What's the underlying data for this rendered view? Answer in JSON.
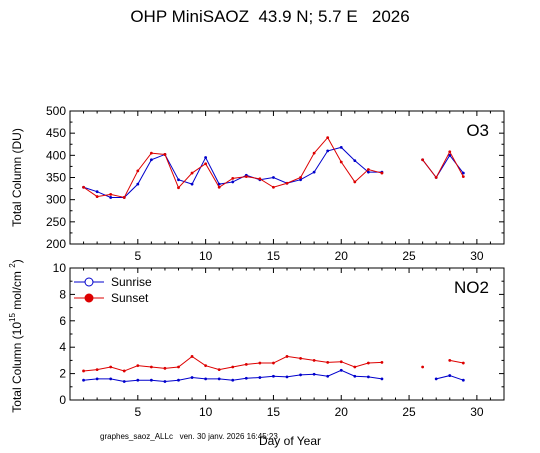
{
  "title": "OHP MiniSAOZ  43.9 N; 5.7 E   2026",
  "footer": "graphes_saoz_ALLc   ven. 30 janv. 2026 16:45:23",
  "colors": {
    "sunrise": "#0000cc",
    "sunset": "#dd0000",
    "axis": "#000000"
  },
  "chart_data": [
    {
      "type": "line",
      "panel_label": "O3",
      "ylabel": "Total Column  (DU)",
      "xlabel": "",
      "xlim": [
        0,
        32
      ],
      "ylim": [
        200,
        500
      ],
      "xticks": [
        0,
        5,
        10,
        15,
        20,
        25,
        30
      ],
      "yticks": [
        200,
        250,
        300,
        350,
        400,
        450,
        500
      ],
      "series": [
        {
          "name": "Sunrise",
          "color": "#0000cc",
          "points": [
            [
              1,
              328
            ],
            [
              2,
              318
            ],
            [
              3,
              305
            ],
            [
              4,
              305
            ],
            [
              5,
              335
            ],
            [
              6,
              390
            ],
            [
              7,
              402
            ],
            [
              8,
              345
            ],
            [
              9,
              335
            ],
            [
              10,
              395
            ],
            [
              11,
              335
            ],
            [
              12,
              340
            ],
            [
              13,
              355
            ],
            [
              14,
              345
            ],
            [
              15,
              350
            ],
            [
              16,
              337
            ],
            [
              17,
              345
            ],
            [
              18,
              362
            ],
            [
              19,
              410
            ],
            [
              20,
              418
            ],
            [
              21,
              388
            ],
            [
              22,
              362
            ],
            [
              23,
              362
            ],
            null,
            null,
            [
              26,
              390
            ],
            [
              27,
              350
            ],
            [
              28,
              400
            ],
            [
              29,
              360
            ]
          ]
        },
        {
          "name": "Sunset",
          "color": "#dd0000",
          "points": [
            [
              1,
              328
            ],
            [
              2,
              307
            ],
            [
              3,
              312
            ],
            [
              4,
              305
            ],
            [
              5,
              365
            ],
            [
              6,
              405
            ],
            [
              7,
              402
            ],
            [
              8,
              327
            ],
            [
              9,
              360
            ],
            [
              10,
              381
            ],
            [
              11,
              328
            ],
            [
              12,
              348
            ],
            [
              13,
              352
            ],
            [
              14,
              347
            ],
            [
              15,
              328
            ],
            [
              16,
              337
            ],
            [
              17,
              350
            ],
            [
              18,
              405
            ],
            [
              19,
              440
            ],
            [
              20,
              385
            ],
            [
              21,
              340
            ],
            [
              22,
              368
            ],
            [
              23,
              360
            ],
            null,
            null,
            [
              26,
              390
            ],
            [
              27,
              350
            ],
            [
              28,
              408
            ],
            [
              29,
              352
            ]
          ]
        }
      ]
    },
    {
      "type": "line",
      "panel_label": "NO2",
      "ylabel": "Total Column (10 mol/cm )",
      "ylabel_exponent": "15",
      "ylabel_sup2": "2",
      "xlabel": "Day of Year",
      "xlim": [
        0,
        32
      ],
      "ylim": [
        0,
        10
      ],
      "xticks": [
        0,
        5,
        10,
        15,
        20,
        25,
        30
      ],
      "yticks": [
        0,
        2,
        4,
        6,
        8,
        10
      ],
      "legend": [
        "Sunrise",
        "Sunset"
      ],
      "legend_position": "top-left",
      "series": [
        {
          "name": "Sunrise",
          "color": "#0000cc",
          "points": [
            [
              1,
              1.5
            ],
            [
              2,
              1.6
            ],
            [
              3,
              1.6
            ],
            [
              4,
              1.4
            ],
            [
              5,
              1.5
            ],
            [
              6,
              1.5
            ],
            [
              7,
              1.4
            ],
            [
              8,
              1.5
            ],
            [
              9,
              1.7
            ],
            [
              10,
              1.6
            ],
            [
              11,
              1.6
            ],
            [
              12,
              1.5
            ],
            [
              13,
              1.65
            ],
            [
              14,
              1.7
            ],
            [
              15,
              1.8
            ],
            [
              16,
              1.75
            ],
            [
              17,
              1.9
            ],
            [
              18,
              1.95
            ],
            [
              19,
              1.8
            ],
            [
              20,
              2.25
            ],
            [
              21,
              1.8
            ],
            [
              22,
              1.75
            ],
            [
              23,
              1.6
            ],
            null,
            null,
            null,
            [
              27,
              1.6
            ],
            [
              28,
              1.85
            ],
            [
              29,
              1.5
            ]
          ]
        },
        {
          "name": "Sunset",
          "color": "#dd0000",
          "points": [
            [
              1,
              2.2
            ],
            [
              2,
              2.3
            ],
            [
              3,
              2.5
            ],
            [
              4,
              2.2
            ],
            [
              5,
              2.6
            ],
            [
              6,
              2.5
            ],
            [
              7,
              2.4
            ],
            [
              8,
              2.5
            ],
            [
              9,
              3.3
            ],
            [
              10,
              2.6
            ],
            [
              11,
              2.3
            ],
            [
              12,
              2.5
            ],
            [
              13,
              2.7
            ],
            [
              14,
              2.8
            ],
            [
              15,
              2.8
            ],
            [
              16,
              3.3
            ],
            [
              17,
              3.15
            ],
            [
              18,
              3.0
            ],
            [
              19,
              2.85
            ],
            [
              20,
              2.9
            ],
            [
              21,
              2.5
            ],
            [
              22,
              2.8
            ],
            [
              23,
              2.85
            ],
            null,
            null,
            [
              26,
              2.5
            ],
            null,
            [
              28,
              3.0
            ],
            [
              29,
              2.8
            ]
          ]
        }
      ]
    }
  ]
}
